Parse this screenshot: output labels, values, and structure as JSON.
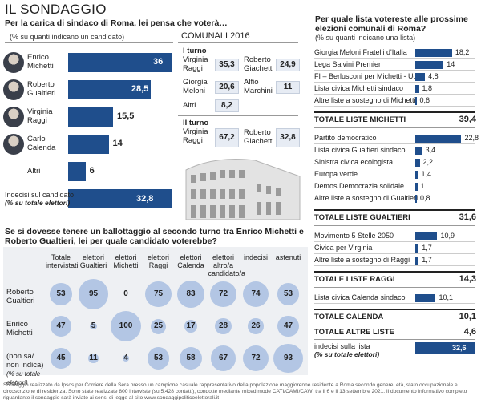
{
  "header": {
    "title": "IL SONDAGGIO"
  },
  "first_round": {
    "question": "Per la carica di sindaco di Roma, lei pensa che voterà…",
    "unit_note": "(% su quanti indicano un candidato)",
    "section_label": "COMUNALI 2016",
    "candidates": [
      {
        "name": "Enrico Michetti",
        "value": "36"
      },
      {
        "name": "Roberto Gualtieri",
        "value": "28,5"
      },
      {
        "name": "Virginia Raggi",
        "value": "15,5"
      },
      {
        "name": "Carlo Calenda",
        "value": "14"
      },
      {
        "name": "Altri",
        "value": "6"
      }
    ],
    "undecided_label": "Indecisi sul candidato",
    "undecided_note": "(% su totale elettori)",
    "undecided_value": "32,8"
  },
  "comunali_2016": {
    "round1_label": "I turno",
    "round1": [
      {
        "name": "Virginia Raggi",
        "value": "35,3"
      },
      {
        "name": "Roberto Giachetti",
        "value": "24,9"
      },
      {
        "name": "Giorgia Meloni",
        "value": "20,6"
      },
      {
        "name": "Alfio Marchini",
        "value": "11"
      },
      {
        "name": "Altri",
        "value": "8,2"
      }
    ],
    "round2_label": "II turno",
    "round2": [
      {
        "name": "Virginia Raggi",
        "value": "67,2"
      },
      {
        "name": "Roberto Giachetti",
        "value": "32,8"
      }
    ]
  },
  "ballot": {
    "question": "Se si dovesse tenere un ballottaggio al secondo turno tra Enrico Michetti e Roberto Gualtieri, lei per quale candidato voterebbe?",
    "columns": [
      "Totale intervistati",
      "elettori Gualtieri",
      "elettori Michetti",
      "elettori Raggi",
      "elettori Calenda",
      "elettori altro/a candidato/a",
      "indecisi",
      "astenuti"
    ],
    "rows": [
      {
        "label": "Roberto Gualtieri",
        "values": [
          53,
          95,
          0,
          75,
          83,
          72,
          74,
          53
        ]
      },
      {
        "label": "Enrico Michetti",
        "values": [
          47,
          5,
          100,
          25,
          17,
          28,
          26,
          47
        ]
      },
      {
        "label": "(non sa/ non indica)",
        "note": "(% su totale elettori)",
        "values": [
          45,
          11,
          4,
          53,
          58,
          67,
          72,
          93
        ]
      }
    ]
  },
  "lists": {
    "question": "Per quale lista votereste alle prossime elezioni comunali di Roma?",
    "unit_note": "(% su quanti indicano una lista)",
    "groups": [
      {
        "items": [
          {
            "name": "Giorgia Meloni Fratelli d'Italia",
            "value": "18,2"
          },
          {
            "name": "Lega Salvini Premier",
            "value": "14"
          },
          {
            "name": "FI – Berlusconi per Michetti - Udc",
            "value": "4,8"
          },
          {
            "name": "Lista civica Michetti sindaco",
            "value": "1,8"
          },
          {
            "name": "Altre liste a sostegno di Michetti",
            "value": "0,6"
          }
        ],
        "total_label": "TOTALE LISTE MICHETTI",
        "total_value": "39,4"
      },
      {
        "items": [
          {
            "name": "Partito democratico",
            "value": "22,8"
          },
          {
            "name": "Lista civica Gualtieri sindaco",
            "value": "3,4"
          },
          {
            "name": "Sinistra civica ecologista",
            "value": "2,2"
          },
          {
            "name": "Europa verde",
            "value": "1,4"
          },
          {
            "name": "Demos Democrazia solidale",
            "value": "1"
          },
          {
            "name": "Altre liste a sostegno di Gualtieri",
            "value": "0,8"
          }
        ],
        "total_label": "TOTALE LISTE GUALTIERI",
        "total_value": "31,6"
      },
      {
        "items": [
          {
            "name": "Movimento 5 Stelle 2050",
            "value": "10,9"
          },
          {
            "name": "Civica per Virginia",
            "value": "1,7"
          },
          {
            "name": "Altre liste a sostegno di Raggi",
            "value": "1,7"
          }
        ],
        "total_label": "TOTALE LISTE RAGGI",
        "total_value": "14,3"
      },
      {
        "items": [
          {
            "name": "Lista civica Calenda sindaco",
            "value": "10,1"
          }
        ],
        "total_label": "TOTALE CALENDA",
        "total_value": "10,1"
      }
    ],
    "other_label": "TOTALE ALTRE LISTE",
    "other_value": "4,6",
    "undecided_label": "indecisi sulla lista",
    "undecided_note": "(% su totale elettori)",
    "undecided_value": "32,6"
  },
  "footer": {
    "text": "Sondaggio realizzato da Ipsos per Corriere della Sera presso un campione casuale rappresentativo della popolazione maggiorenne residente a Roma secondo genere, età, stato occupazionale e circoscrizione di residenza. Sono state realizzate 800 interviste (su 5.428 contatti), condotte mediante mixed mode CATI/CAMI/CAWI tra il 6 e il 13 settembre 2021. Il documento informativo completo riguardante il sondaggio sarà inviato ai sensi di legge al sito www.sondaggipoliticoelettorali.it"
  },
  "chart_data": [
    {
      "type": "bar",
      "title": "Per la carica di sindaco di Roma, lei pensa che voterà…",
      "categories": [
        "Enrico Michetti",
        "Roberto Gualtieri",
        "Virginia Raggi",
        "Carlo Calenda",
        "Altri"
      ],
      "values": [
        36,
        28.5,
        15.5,
        14,
        6
      ],
      "xlim": [
        0,
        40
      ]
    },
    {
      "type": "table",
      "title": "Se si dovesse tenere un ballottaggio al secondo turno tra Enrico Michetti e Roberto Gualtieri, lei per quale candidato voterebbe?",
      "categories": [
        "Totale intervistati",
        "elettori Gualtieri",
        "elettori Michetti",
        "elettori Raggi",
        "elettori Calenda",
        "elettori altro/a candidato/a",
        "indecisi",
        "astenuti"
      ],
      "series": [
        {
          "name": "Roberto Gualtieri",
          "values": [
            53,
            95,
            0,
            75,
            83,
            72,
            74,
            53
          ]
        },
        {
          "name": "Enrico Michetti",
          "values": [
            47,
            5,
            100,
            25,
            17,
            28,
            26,
            47
          ]
        },
        {
          "name": "(non sa/ non indica)",
          "values": [
            45,
            11,
            4,
            53,
            58,
            67,
            72,
            93
          ]
        }
      ]
    },
    {
      "type": "bar",
      "title": "Per quale lista votereste alle prossime elezioni comunali di Roma?",
      "categories": [
        "Giorgia Meloni Fratelli d'Italia",
        "Lega Salvini Premier",
        "FI – Berlusconi per Michetti - Udc",
        "Lista civica Michetti sindaco",
        "Altre liste a sostegno di Michetti",
        "Partito democratico",
        "Lista civica Gualtieri sindaco",
        "Sinistra civica ecologista",
        "Europa verde",
        "Demos Democrazia solidale",
        "Altre liste a sostegno di Gualtieri",
        "Movimento 5 Stelle 2050",
        "Civica per Virginia",
        "Altre liste a sostegno di Raggi",
        "Lista civica Calenda sindaco"
      ],
      "values": [
        18.2,
        14,
        4.8,
        1.8,
        0.6,
        22.8,
        3.4,
        2.2,
        1.4,
        1,
        0.8,
        10.9,
        1.7,
        1.7,
        10.1
      ],
      "xlim": [
        0,
        23
      ]
    }
  ]
}
